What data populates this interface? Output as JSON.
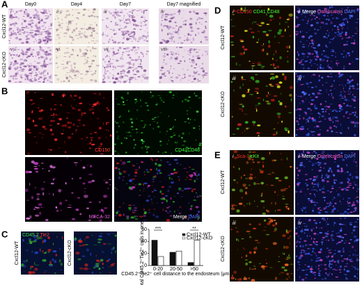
{
  "panels": {
    "A": {
      "label": "A",
      "columns": [
        "Day0",
        "Day4",
        "Day7",
        "Day7 magnified"
      ],
      "rows": [
        "Cxcl12-WT",
        "Cxcl12-cKO"
      ],
      "images": [
        "i",
        "ii",
        "iii",
        "iv",
        "v",
        "vi",
        "vii",
        "viii"
      ]
    },
    "B": {
      "label": "B",
      "stains": [
        "CD150",
        "CD41CD48",
        "MECA-32"
      ],
      "merge": [
        "Merge",
        "DAPI"
      ]
    },
    "C": {
      "label": "C",
      "rows": [
        "Cxcl12-WT",
        "Cxcl12-cKO"
      ],
      "stains": [
        "CD45.2",
        "Tie2"
      ],
      "chart": {
        "type": "bar",
        "y_label": "% in total CD45.2⁺Tie2⁺ cells in one BM section",
        "x_label": "CD45.2⁺Tie2⁺ cell distance to the endosteum (μm)",
        "categories": [
          "0-20",
          "20-50",
          ">50"
        ],
        "series": [
          {
            "name": "Cxcl12-WT",
            "color": "#111111",
            "values": [
              42,
              22,
              5
            ]
          },
          {
            "name": "Cxcl12-cKO",
            "color": "#ffffff",
            "values": [
              15,
              24,
              42
            ]
          }
        ],
        "ylim": [
          0,
          60
        ],
        "yticks": [
          0,
          20,
          40,
          60
        ],
        "annotations": [
          {
            "text": "***",
            "category": "0-20"
          },
          {
            "text": "**",
            "category": ">50"
          }
        ]
      }
    },
    "D": {
      "label": "D",
      "rows": [
        "Cxcl12-WT",
        "Cxcl12-cKO"
      ],
      "images": [
        "i",
        "ii",
        "iii",
        "iv"
      ],
      "stains": [
        "CD150",
        "CD41",
        "CD48"
      ],
      "merge": [
        "Merge",
        "Osteocalcin",
        "DAPI"
      ]
    },
    "E": {
      "label": "E",
      "rows": [
        "Cxcl12-WT",
        "Cxcl12-cKO"
      ],
      "images": [
        "i",
        "ii",
        "iii",
        "iv"
      ],
      "stains": [
        "Sca-1",
        "cKit"
      ],
      "merge": [
        "Merge",
        "Osteocalcin",
        "DAPI"
      ]
    }
  }
}
